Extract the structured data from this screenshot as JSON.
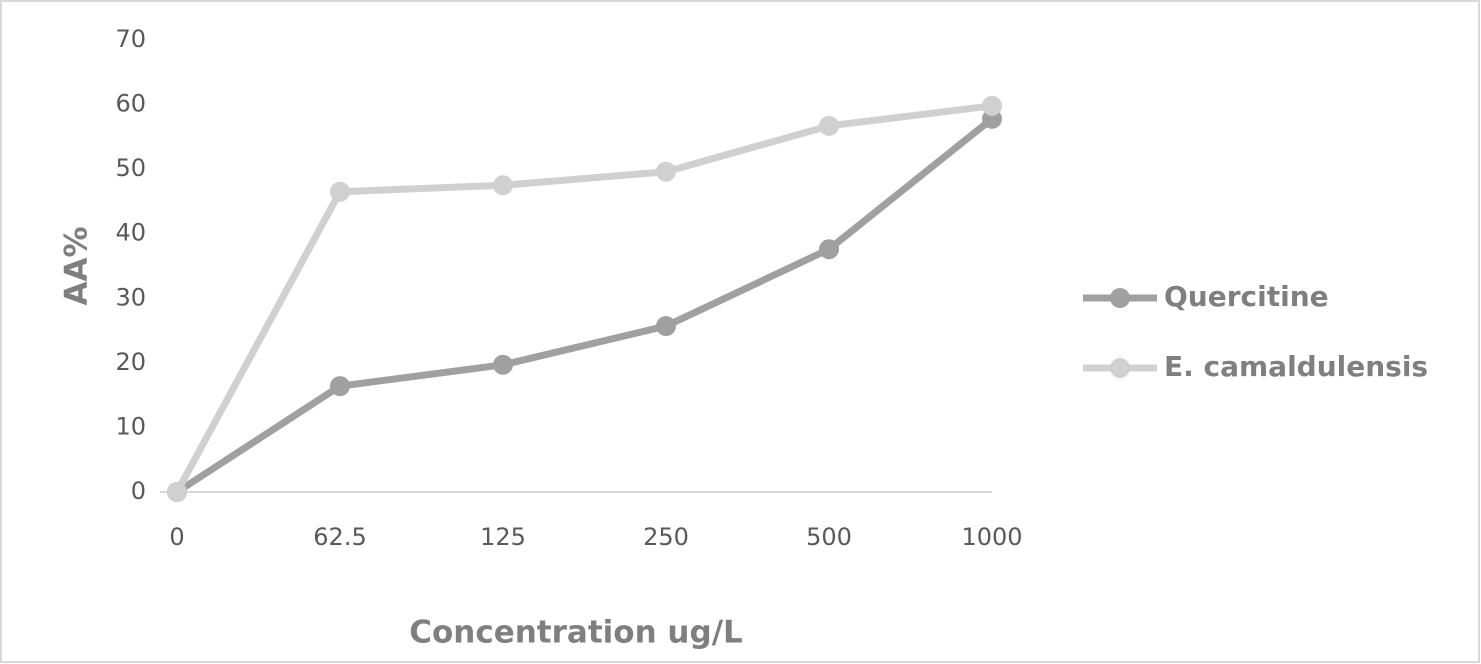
{
  "chart_data": {
    "type": "line",
    "x_label": "Concentration ug/L",
    "y_label": "AA%",
    "categories": [
      "0",
      "62.5",
      "125",
      "250",
      "500",
      "1000"
    ],
    "series": [
      {
        "name": "Quercitine",
        "color": "#a0a0a0",
        "values": [
          0,
          16.4,
          19.7,
          25.7,
          37.6,
          57.8
        ]
      },
      {
        "name": "E. camaldulensis",
        "color": "#d0d0d0",
        "values": [
          0,
          46.5,
          47.5,
          49.6,
          56.7,
          59.8
        ]
      }
    ],
    "ylim": [
      0,
      70
    ],
    "yticks": [
      0,
      10,
      20,
      30,
      40,
      50,
      60,
      70
    ],
    "grid": false,
    "legend": "right"
  }
}
